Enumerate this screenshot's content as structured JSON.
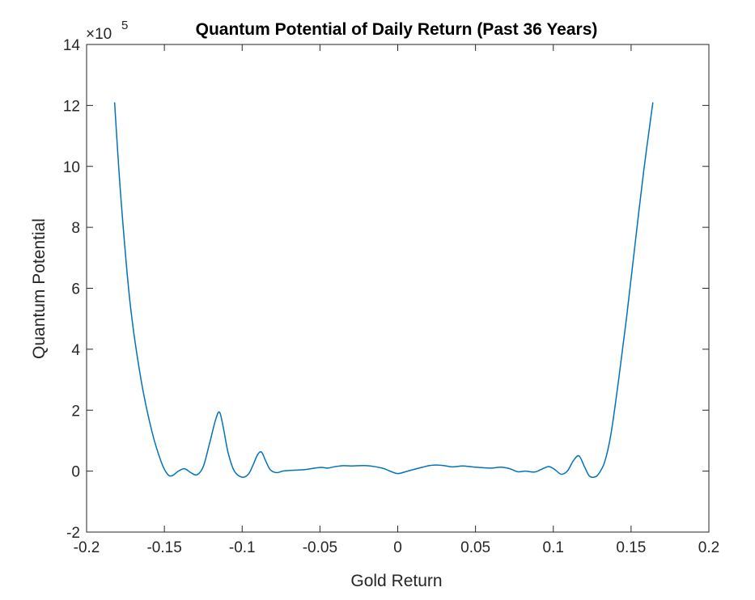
{
  "chart_data": {
    "type": "line",
    "title": "Quantum Potential of Daily Return (Past 36 Years)",
    "xlabel": "Gold Return",
    "ylabel": "Quantum Potential",
    "xlim": [
      -0.2,
      0.2
    ],
    "ylim": [
      -2,
      14
    ],
    "y_multiplier_label": "×10",
    "y_multiplier_exponent": "5",
    "x_ticks": [
      -0.2,
      -0.15,
      -0.1,
      -0.05,
      0,
      0.05,
      0.1,
      0.15,
      0.2
    ],
    "x_tick_labels": [
      "-0.2",
      "-0.15",
      "-0.1",
      "-0.05",
      "0",
      "0.05",
      "0.1",
      "0.15",
      "0.2"
    ],
    "y_ticks": [
      -2,
      0,
      2,
      4,
      6,
      8,
      10,
      12,
      14
    ],
    "y_tick_labels": [
      "-2",
      "0",
      "2",
      "4",
      "6",
      "8",
      "10",
      "12",
      "14"
    ],
    "grid": false,
    "line_color": "#0072BD",
    "series": [
      {
        "x": [
          -0.182,
          -0.178,
          -0.172,
          -0.165,
          -0.158,
          -0.152,
          -0.148,
          -0.145,
          -0.141,
          -0.137,
          -0.133,
          -0.129,
          -0.125,
          -0.121,
          -0.117,
          -0.1145,
          -0.112,
          -0.109,
          -0.105,
          -0.1,
          -0.096,
          -0.093,
          -0.09,
          -0.0875,
          -0.085,
          -0.082,
          -0.078,
          -0.074,
          -0.07,
          -0.06,
          -0.05,
          -0.045,
          -0.04,
          -0.035,
          -0.03,
          -0.02,
          -0.01,
          -0.005,
          0.0,
          0.005,
          0.01,
          0.02,
          0.025,
          0.03,
          0.035,
          0.042,
          0.05,
          0.06,
          0.066,
          0.072,
          0.077,
          0.082,
          0.088,
          0.092,
          0.097,
          0.101,
          0.105,
          0.109,
          0.113,
          0.1165,
          0.12,
          0.123,
          0.126,
          0.129,
          0.133,
          0.137,
          0.142,
          0.147,
          0.152,
          0.158,
          0.164
        ],
        "y": [
          12.1,
          9.0,
          5.5,
          3.0,
          1.3,
          0.3,
          -0.1,
          -0.15,
          0.0,
          0.08,
          -0.05,
          -0.12,
          0.15,
          0.9,
          1.7,
          1.93,
          1.4,
          0.6,
          0.0,
          -0.2,
          -0.1,
          0.2,
          0.55,
          0.62,
          0.35,
          0.05,
          -0.05,
          0.0,
          0.02,
          0.05,
          0.12,
          0.1,
          0.15,
          0.18,
          0.17,
          0.18,
          0.1,
          0.0,
          -0.08,
          -0.02,
          0.05,
          0.18,
          0.2,
          0.18,
          0.14,
          0.17,
          0.13,
          0.1,
          0.13,
          0.08,
          -0.02,
          0.0,
          -0.03,
          0.05,
          0.15,
          0.05,
          -0.1,
          0.0,
          0.35,
          0.5,
          0.15,
          -0.15,
          -0.2,
          -0.1,
          0.3,
          1.2,
          3.0,
          5.0,
          7.2,
          9.8,
          12.1
        ]
      }
    ]
  }
}
